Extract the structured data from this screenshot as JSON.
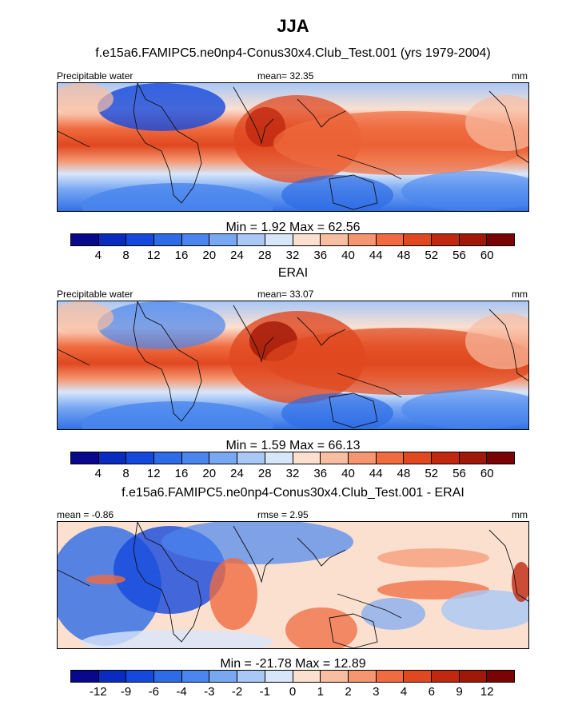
{
  "figure": {
    "title": "JJA",
    "subtitle": "f.e15a6.FAMIPC5.ne0np4-Conus30x4.Club_Test.001 (yrs 1979-2004)"
  },
  "panels": [
    {
      "left_label": "Precipitable water",
      "center_label": "mean=  32.35",
      "right_label": "mm",
      "minmax": "Min =   1.92 Max =  62.56",
      "ticks": [
        "4",
        "8",
        "12",
        "16",
        "20",
        "24",
        "28",
        "32",
        "36",
        "40",
        "44",
        "48",
        "52",
        "56",
        "60"
      ]
    },
    {
      "heading": "ERAI",
      "left_label": "Precipitable water",
      "center_label": "mean=  33.07",
      "right_label": "mm",
      "minmax": "Min =   1.59 Max =  66.13",
      "ticks": [
        "4",
        "8",
        "12",
        "16",
        "20",
        "24",
        "28",
        "32",
        "36",
        "40",
        "44",
        "48",
        "52",
        "56",
        "60"
      ]
    },
    {
      "heading": "f.e15a6.FAMIPC5.ne0np4-Conus30x4.Club_Test.001 - ERAI",
      "left_label": "mean =  -0.86",
      "center_label": "rmse =   2.95",
      "right_label": "mm",
      "minmax": "Min = -21.78 Max =  12.89",
      "ticks": [
        "-12",
        "-9",
        "-6",
        "-4",
        "-3",
        "-2",
        "-1",
        "0",
        "1",
        "2",
        "3",
        "4",
        "6",
        "9",
        "12"
      ]
    }
  ],
  "colorbar_colors": [
    "#08088c",
    "#0a2cbe",
    "#1548dc",
    "#2d6ce6",
    "#4a86ee",
    "#79a8f2",
    "#a9c8f6",
    "#d8e6fa",
    "#fbe0d0",
    "#f8bea2",
    "#f59670",
    "#f06c40",
    "#e04820",
    "#c02810",
    "#a01808",
    "#7a0404"
  ]
}
